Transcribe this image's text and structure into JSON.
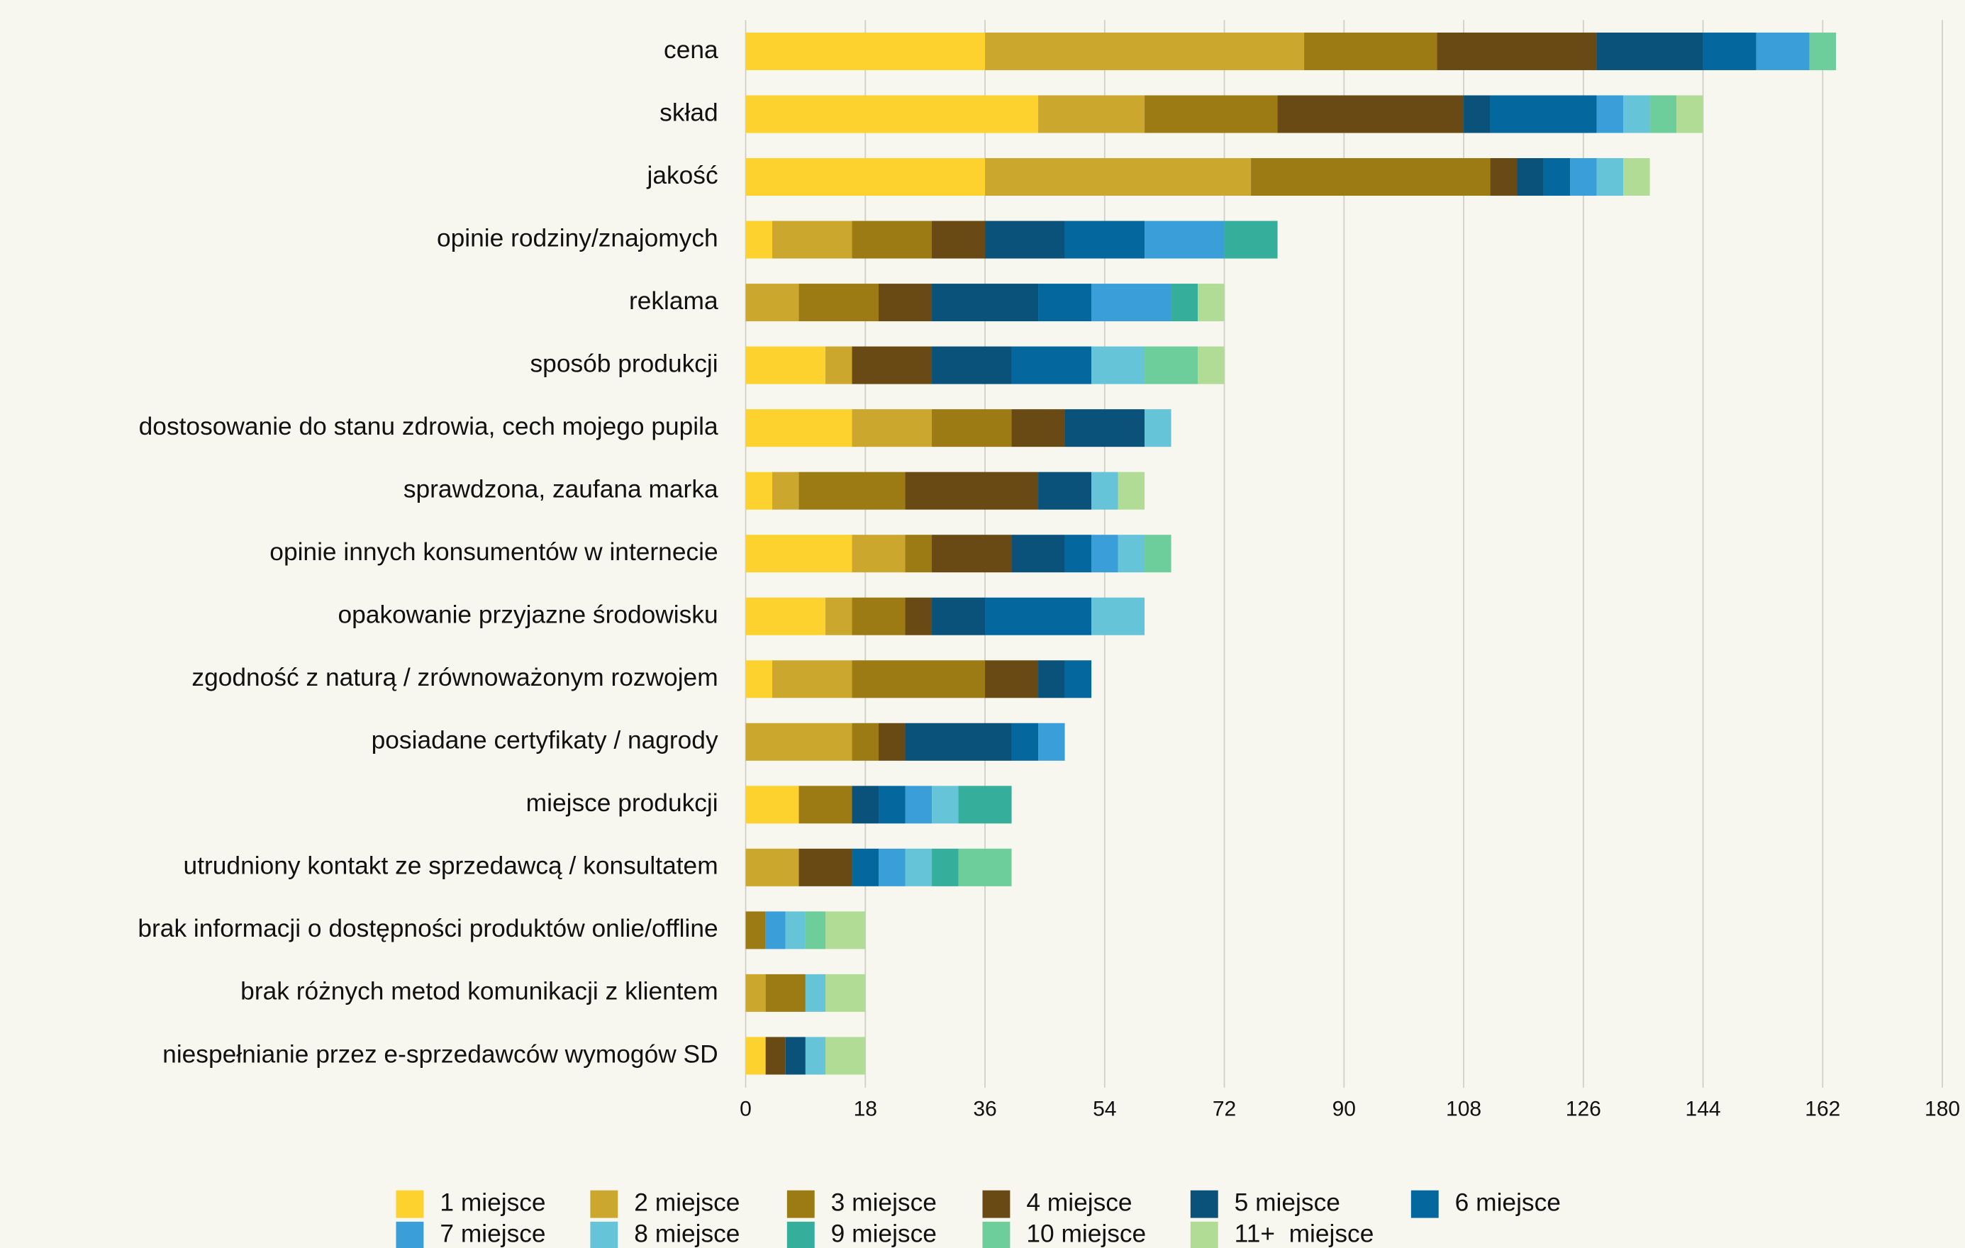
{
  "chart_data": {
    "type": "stacked-barh",
    "categories": [
      "cena",
      "skład",
      "jakość",
      "opinie rodziny/znajomych",
      "reklama",
      "sposób produkcji",
      "dostosowanie do stanu zdrowia, cech mojego pupila",
      "sprawdzona, zaufana marka",
      "opinie innych konsumentów w internecie",
      "opakowanie przyjazne środowisku",
      "zgodność z naturą / zrównoważonym rozwojem",
      "posiadane certyfikaty / nagrody",
      "miejsce produkcji",
      "utrudniony kontakt ze sprzedawcą / konsultatem",
      "brak informacji o dostępności produktów onlie/offline",
      "brak różnych metod komunikacji z klientem",
      "niespełnianie przez e-sprzedawców wymogów SD"
    ],
    "series": [
      {
        "name": "1 miejsce",
        "color": "#fdd22f",
        "values": [
          36,
          44,
          36,
          4,
          0,
          12,
          16,
          4,
          16,
          12,
          4,
          0,
          8,
          0,
          0,
          0,
          3
        ]
      },
      {
        "name": "2 miejsce",
        "color": "#cba72e",
        "values": [
          48,
          16,
          40,
          12,
          8,
          4,
          12,
          4,
          8,
          4,
          12,
          16,
          0,
          8,
          0,
          3,
          0
        ]
      },
      {
        "name": "3 miejsce",
        "color": "#9c7b14",
        "values": [
          20,
          20,
          36,
          12,
          12,
          0,
          12,
          16,
          4,
          8,
          20,
          4,
          8,
          0,
          3,
          6,
          0
        ]
      },
      {
        "name": "4 miejsce",
        "color": "#694a14",
        "values": [
          24,
          28,
          4,
          8,
          8,
          12,
          8,
          20,
          12,
          4,
          8,
          4,
          0,
          8,
          0,
          0,
          3
        ]
      },
      {
        "name": "5 miejsce",
        "color": "#0a527a",
        "values": [
          16,
          4,
          4,
          12,
          16,
          12,
          12,
          8,
          8,
          8,
          4,
          16,
          4,
          0,
          0,
          0,
          3
        ]
      },
      {
        "name": "6 miejsce",
        "color": "#04679e",
        "values": [
          8,
          16,
          4,
          12,
          8,
          12,
          0,
          0,
          4,
          16,
          4,
          4,
          4,
          4,
          0,
          0,
          0
        ]
      },
      {
        "name": "7 miejsce",
        "color": "#3a9ed8",
        "values": [
          8,
          4,
          4,
          12,
          12,
          0,
          0,
          0,
          4,
          0,
          0,
          4,
          4,
          4,
          3,
          0,
          0
        ]
      },
      {
        "name": "8 miejsce",
        "color": "#66c4d8",
        "values": [
          0,
          4,
          4,
          0,
          0,
          8,
          4,
          4,
          4,
          8,
          0,
          0,
          4,
          4,
          3,
          3,
          3
        ]
      },
      {
        "name": "9 miejsce",
        "color": "#36ae9c",
        "values": [
          0,
          0,
          0,
          8,
          4,
          0,
          0,
          0,
          0,
          0,
          0,
          0,
          8,
          4,
          0,
          0,
          0
        ]
      },
      {
        "name": "10 miejsce",
        "color": "#6dcd9b",
        "values": [
          4,
          4,
          0,
          0,
          0,
          8,
          0,
          0,
          4,
          0,
          0,
          0,
          0,
          8,
          3,
          0,
          0
        ]
      },
      {
        "name": "11+  miejsce",
        "color": "#b0dc96",
        "values": [
          0,
          4,
          4,
          0,
          4,
          4,
          0,
          4,
          0,
          0,
          0,
          0,
          0,
          0,
          6,
          6,
          6
        ]
      }
    ],
    "xlim": [
      0,
      180
    ],
    "xticks": [
      0,
      18,
      36,
      54,
      72,
      90,
      108,
      126,
      144,
      162,
      180
    ],
    "grid": true
  }
}
